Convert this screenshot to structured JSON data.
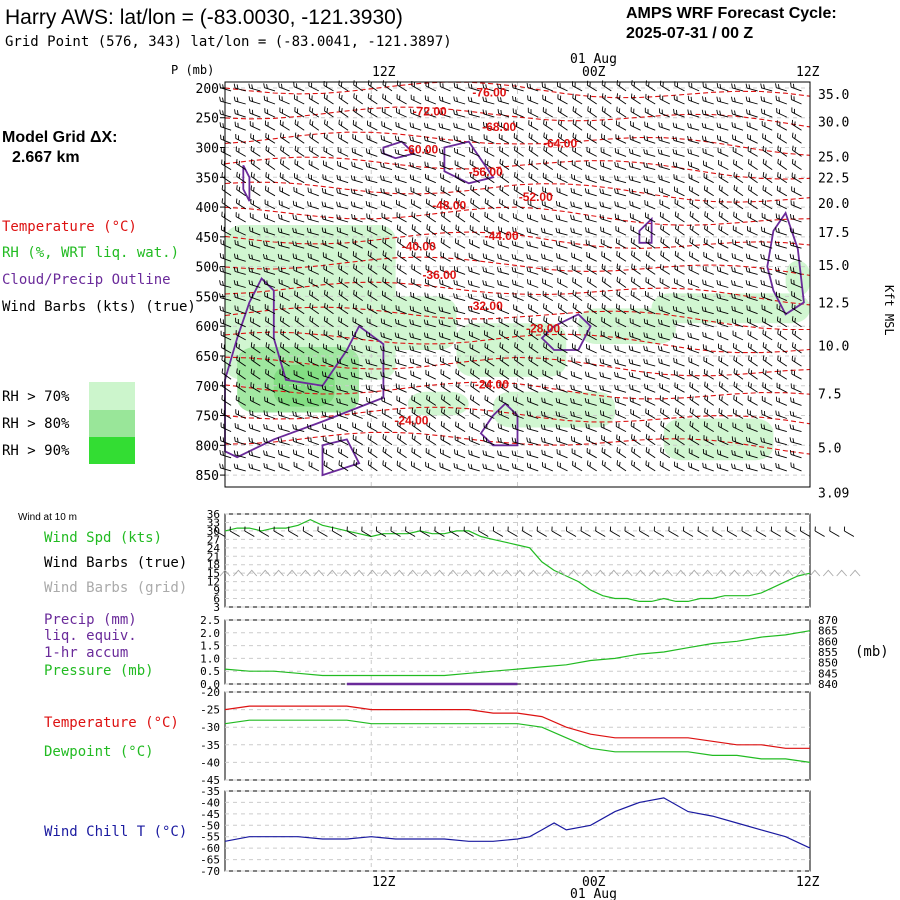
{
  "header": {
    "title": "Harry AWS:  lat/lon = (-83.0030, -121.3930)",
    "subtitle": "Grid Point (576, 343) lat/lon = (-83.0041, -121.3897)",
    "cycle_label": "AMPS WRF Forecast Cycle:",
    "cycle_value": "2025-07-31 / 00  Z",
    "model_grid_label": "Model Grid ΔX:",
    "model_grid_value": "2.667 km"
  },
  "time_axis": {
    "top_tick_labels": [
      "12Z",
      "00Z",
      "12Z"
    ],
    "bottom_tick_labels": [
      "12Z",
      "00Z",
      "12Z"
    ],
    "date_label": "01 Aug"
  },
  "legend": {
    "temperature": "Temperature (°C)",
    "rh": "RH (%, WRT liq. wat.)",
    "cloud": "Cloud/Precip Outline",
    "wind_barbs": "Wind Barbs (kts) (true)",
    "rh_thresholds": [
      "RH > 70%",
      "RH > 80%",
      "RH > 90%"
    ],
    "rh_colors": [
      "#ccf5cc",
      "#99e699",
      "#33dd33"
    ]
  },
  "colors": {
    "temperature": "#dd1111",
    "rh_light": "#ccf5cc",
    "cloud": "#6a2a9a",
    "wind_speed": "#22bb22",
    "grid_barbs": "#aaaaaa",
    "precip": "#6a2a9a",
    "pressure": "#22bb22",
    "dewpoint": "#22bb22",
    "wind_chill": "#1a1aa0"
  },
  "chart_data": [
    {
      "type": "heatmap",
      "name_panel": "vertical cross-section",
      "ylabel": "P (mb)",
      "y2label": "Kft MSL",
      "yticks": [
        200,
        250,
        300,
        350,
        400,
        450,
        500,
        550,
        600,
        650,
        700,
        750,
        800,
        850
      ],
      "ylim": [
        190,
        870
      ],
      "xlim": [
        0,
        48
      ],
      "y2ticks": [
        {
          "label": "35.0",
          "p": 210
        },
        {
          "label": "30.0",
          "p": 256
        },
        {
          "label": "25.0",
          "p": 315
        },
        {
          "label": "22.5",
          "p": 350
        },
        {
          "label": "20.0",
          "p": 393
        },
        {
          "label": "17.5",
          "p": 442
        },
        {
          "label": "15.0",
          "p": 497
        },
        {
          "label": "12.5",
          "p": 560
        },
        {
          "label": "10.0",
          "p": 632
        },
        {
          "label": "7.5",
          "p": 713
        },
        {
          "label": "5.0",
          "p": 804
        },
        {
          "label": "3.09",
          "p": 879
        }
      ],
      "temperature_labels": [
        {
          "label": "-76.00",
          "x": 20.3,
          "p": 214
        },
        {
          "label": "-72.00",
          "x": 15.4,
          "p": 246
        },
        {
          "label": "-68.00",
          "x": 21.1,
          "p": 272
        },
        {
          "label": "-64.00",
          "x": 26.1,
          "p": 300
        },
        {
          "label": "-60.00",
          "x": 14.7,
          "p": 310
        },
        {
          "label": "-56.00",
          "x": 20.0,
          "p": 348
        },
        {
          "label": "-52.00",
          "x": 24.1,
          "p": 390
        },
        {
          "label": "-48.00",
          "x": 17.0,
          "p": 404
        },
        {
          "label": "-44.00",
          "x": 21.3,
          "p": 455
        },
        {
          "label": "-40.00",
          "x": 14.5,
          "p": 473
        },
        {
          "label": "-36.00",
          "x": 16.2,
          "p": 521
        },
        {
          "label": "-32.00",
          "x": 20.0,
          "p": 573
        },
        {
          "label": "-28.00",
          "x": 24.7,
          "p": 611
        },
        {
          "label": "-24.00",
          "x": 20.5,
          "p": 705
        },
        {
          "label": "-24.00",
          "x": 13.9,
          "p": 765
        }
      ]
    },
    {
      "type": "line",
      "name_panel": "Wind at 10 m",
      "title": "Wind at 10 m",
      "yticks": [
        3,
        6,
        9,
        12,
        15,
        18,
        21,
        24,
        27,
        30,
        33,
        36
      ],
      "ylim": [
        3,
        36
      ],
      "xlim": [
        0,
        48
      ],
      "series": [
        {
          "name": "Wind Spd (kts)",
          "x": [
            0,
            1,
            2,
            3,
            4,
            5,
            6,
            7,
            8,
            9,
            10,
            11,
            12,
            13,
            14,
            15,
            16,
            17,
            18,
            19,
            20,
            21,
            22,
            23,
            24,
            25,
            26,
            27,
            28,
            29,
            30,
            31,
            32,
            33,
            34,
            35,
            36,
            37,
            38,
            39,
            40,
            41,
            42,
            43,
            44,
            45,
            46,
            47,
            48
          ],
          "values": [
            30,
            31,
            31,
            30,
            31,
            31,
            32,
            34,
            32,
            31,
            30,
            29,
            28,
            29,
            29,
            29,
            30,
            29,
            29,
            30,
            30,
            28,
            27,
            26,
            25,
            24,
            19,
            16,
            14,
            12,
            9,
            7,
            6,
            6,
            5,
            5,
            6,
            5,
            5,
            6,
            6,
            7,
            7,
            7,
            8,
            10,
            12,
            14,
            15
          ]
        }
      ],
      "legend_labels": [
        "Wind Spd (kts)",
        "Wind Barbs (true)",
        "Wind Barbs (grid)"
      ]
    },
    {
      "type": "line",
      "name_panel": "precip and pressure",
      "yticks_left": [
        0.0,
        0.5,
        1.0,
        1.5,
        2.0,
        2.5
      ],
      "ylim_left": [
        0,
        2.5
      ],
      "yticks_right": [
        840,
        845,
        850,
        855,
        860,
        865,
        870
      ],
      "ylim_right": [
        840,
        870
      ],
      "y2label": "(mb)",
      "xlim": [
        0,
        48
      ],
      "series": [
        {
          "name": "Precip (mm)",
          "x": [
            10,
            24
          ],
          "values": [
            0,
            0
          ]
        },
        {
          "name": "Pressure (mb)",
          "x": [
            0,
            2,
            4,
            6,
            8,
            10,
            12,
            14,
            16,
            18,
            20,
            22,
            24,
            26,
            28,
            30,
            32,
            34,
            36,
            38,
            40,
            42,
            44,
            46,
            48
          ],
          "values": [
            847,
            846,
            846,
            845,
            844,
            844,
            844,
            844,
            844,
            844,
            845,
            846,
            847,
            848,
            849,
            851,
            852,
            854,
            855,
            857,
            859,
            860,
            862,
            863,
            865
          ]
        }
      ],
      "legend_labels": [
        "Precip (mm)",
        "liq. equiv.",
        "1-hr accum",
        "Pressure (mb)"
      ]
    },
    {
      "type": "line",
      "name_panel": "temperature and dewpoint",
      "yticks": [
        -45,
        -40,
        -35,
        -30,
        -25,
        -20
      ],
      "ylim": [
        -45,
        -20
      ],
      "xlim": [
        0,
        48
      ],
      "series": [
        {
          "name": "Temperature (°C)",
          "x": [
            0,
            2,
            4,
            6,
            8,
            10,
            12,
            14,
            16,
            18,
            20,
            22,
            24,
            26,
            28,
            30,
            32,
            34,
            36,
            38,
            40,
            42,
            44,
            46,
            48
          ],
          "values": [
            -25,
            -24,
            -24,
            -24,
            -24,
            -24,
            -25,
            -25,
            -25,
            -25,
            -25,
            -26,
            -26,
            -27,
            -30,
            -32,
            -33,
            -33,
            -33,
            -33,
            -34,
            -35,
            -35,
            -36,
            -36
          ]
        },
        {
          "name": "Dewpoint (°C)",
          "x": [
            0,
            2,
            4,
            6,
            8,
            10,
            12,
            14,
            16,
            18,
            20,
            22,
            24,
            26,
            28,
            30,
            32,
            34,
            36,
            38,
            40,
            42,
            44,
            46,
            48
          ],
          "values": [
            -29,
            -28,
            -28,
            -28,
            -28,
            -28,
            -29,
            -29,
            -29,
            -29,
            -29,
            -29,
            -29,
            -30,
            -33,
            -36,
            -37,
            -37,
            -37,
            -37,
            -38,
            -38,
            -39,
            -39,
            -40
          ]
        }
      ]
    },
    {
      "type": "line",
      "name_panel": "wind chill",
      "yticks": [
        -70,
        -65,
        -60,
        -55,
        -50,
        -45,
        -40,
        -35
      ],
      "ylim": [
        -70,
        -35
      ],
      "xlim": [
        0,
        48
      ],
      "series": [
        {
          "name": "Wind Chill T (°C)",
          "x": [
            0,
            2,
            4,
            6,
            8,
            10,
            12,
            14,
            16,
            18,
            20,
            22,
            24,
            25,
            26,
            27,
            28,
            30,
            32,
            34,
            36,
            38,
            40,
            42,
            44,
            46,
            48
          ],
          "values": [
            -57,
            -55,
            -55,
            -55,
            -56,
            -56,
            -55,
            -56,
            -56,
            -56,
            -57,
            -57,
            -56,
            -55,
            -52,
            -49,
            -52,
            -50,
            -44,
            -40,
            -38,
            -44,
            -46,
            -49,
            -52,
            -55,
            -60
          ]
        }
      ]
    }
  ]
}
